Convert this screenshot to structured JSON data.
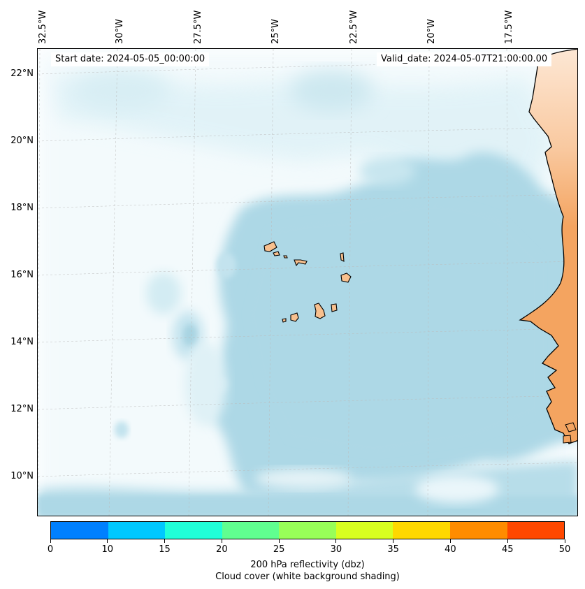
{
  "map": {
    "start_date": "Start date: 2024-05-05_00:00:00",
    "valid_date": "Valid_date: 2024-05-07T21:00:00.00",
    "lon_labels": [
      "32.5°W",
      "30°W",
      "27.5°W",
      "25°W",
      "22.5°W",
      "20°W",
      "17.5°W"
    ],
    "lat_labels": [
      "22°N",
      "20°N",
      "18°N",
      "16°N",
      "14°N",
      "12°N",
      "10°N"
    ],
    "colors": {
      "cloud": "#add8e6",
      "land": "#f4a460",
      "land_light": "#fde3cd",
      "coast": "#000000",
      "grid": "#bbbbbb"
    }
  },
  "colorbar": {
    "ticks": [
      "0",
      "10",
      "15",
      "20",
      "25",
      "30",
      "35",
      "40",
      "45",
      "50"
    ],
    "colors": [
      "#0080ff",
      "#00c8ff",
      "#20ffd8",
      "#60ff90",
      "#98ff58",
      "#d8ff20",
      "#ffd800",
      "#ff8c00",
      "#ff4800"
    ],
    "label": "200 hPa reflectivity (dbz)",
    "sublabel": "Cloud cover (white background shading)"
  }
}
